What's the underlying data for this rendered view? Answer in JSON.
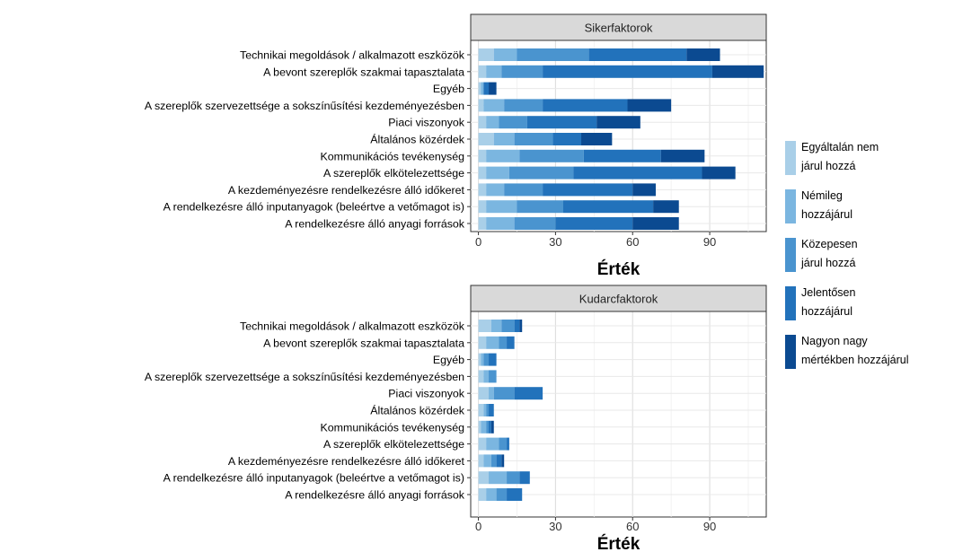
{
  "legend": {
    "entries": [
      {
        "label_lines": [
          "Egyáltalán nem",
          "járul hozzá"
        ],
        "color": "#a9cfe8"
      },
      {
        "label_lines": [
          "Némileg",
          "hozzájárul"
        ],
        "color": "#7bb6e0"
      },
      {
        "label_lines": [
          "Közepesen",
          "járul hozzá"
        ],
        "color": "#4a94cf"
      },
      {
        "label_lines": [
          "Jelentősen",
          "hozzájárul"
        ],
        "color": "#2272bb"
      },
      {
        "label_lines": [
          "Nagyon nagy",
          "mértékben hozzájárul"
        ],
        "color": "#0b4a91"
      }
    ]
  },
  "chart_data": [
    {
      "type": "bar",
      "orientation": "horizontal",
      "stacked": true,
      "title": "Sikerfaktorok",
      "xlabel": "Érték",
      "xlim": [
        -3,
        112
      ],
      "xticks": [
        0,
        30,
        60,
        90
      ],
      "grid": true,
      "categories": [
        "Technikai megoldások / alkalmazott eszközök",
        "A bevont szereplők szakmai tapasztalata",
        "Egyéb",
        "A szereplők szervezettsége a sokszínűsítési kezdeményezésben",
        "Piaci viszonyok",
        "Általános közérdek",
        "Kommunikációs tevékenység",
        "A szereplők elkötelezettsége",
        "A kezdeményezésre rendelkezésre álló időkeret",
        "A rendelkezésre álló inputanyagok (beleértve a vetőmagot is)",
        "A rendelkezésre álló anyagi források"
      ],
      "series": [
        {
          "name": "Egyáltalán nem járul hozzá",
          "values": [
            6,
            3,
            1,
            2,
            3,
            6,
            3,
            3,
            3,
            3,
            3
          ]
        },
        {
          "name": "Némileg hozzájárul",
          "values": [
            9,
            6,
            1,
            8,
            5,
            8,
            13,
            9,
            7,
            12,
            11
          ]
        },
        {
          "name": "Közepesen járul hozzá",
          "values": [
            28,
            16,
            0,
            15,
            11,
            15,
            25,
            25,
            15,
            18,
            16
          ]
        },
        {
          "name": "Jelentősen hozzájárul",
          "values": [
            38,
            66,
            2,
            33,
            27,
            11,
            30,
            50,
            35,
            35,
            30
          ]
        },
        {
          "name": "Nagyon nagy mértékben hozzájárul",
          "values": [
            13,
            20,
            3,
            17,
            17,
            12,
            17,
            13,
            9,
            10,
            18
          ]
        }
      ]
    },
    {
      "type": "bar",
      "orientation": "horizontal",
      "stacked": true,
      "title": "Kudarcfaktorok",
      "xlabel": "Érték",
      "xlim": [
        -3,
        112
      ],
      "xticks": [
        0,
        30,
        60,
        90
      ],
      "grid": true,
      "categories": [
        "Technikai megoldások / alkalmazott eszközök",
        "A bevont szereplők szakmai tapasztalata",
        "Egyéb",
        "A szereplők szervezettsége a sokszínűsítési kezdeményezésben",
        "Piaci viszonyok",
        "Általános közérdek",
        "Kommunikációs tevékenység",
        "A szereplők elkötelezettsége",
        "A kezdeményezésre rendelkezésre álló időkeret",
        "A rendelkezésre álló inputanyagok (beleértve a vetőmagot is)",
        "A rendelkezésre álló anyagi források"
      ],
      "series": [
        {
          "name": "Egyáltalán nem járul hozzá",
          "values": [
            5,
            3,
            1,
            2,
            4,
            2,
            1,
            3,
            2,
            4,
            3
          ]
        },
        {
          "name": "Némileg hozzájárul",
          "values": [
            4,
            5,
            1,
            2,
            2,
            1,
            2,
            5,
            3,
            7,
            4
          ]
        },
        {
          "name": "Közepesen járul hozzá",
          "values": [
            5,
            3,
            2,
            3,
            8,
            1,
            1,
            3,
            2,
            5,
            4
          ]
        },
        {
          "name": "Jelentősen hozzájárul",
          "values": [
            2,
            3,
            3,
            0,
            11,
            2,
            1,
            1,
            2,
            4,
            6
          ]
        },
        {
          "name": "Nagyon nagy mértékben hozzájárul",
          "values": [
            1,
            0,
            0,
            0,
            0,
            0,
            1,
            0,
            1,
            0,
            0
          ]
        }
      ]
    }
  ]
}
